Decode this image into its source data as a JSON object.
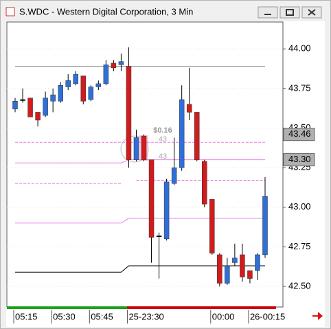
{
  "window_title": "S.WDC - Western Digital Corporation, 3 Min",
  "chart_data": {
    "type": "candlestick",
    "categories": [
      "05:15",
      null,
      null,
      null,
      null,
      "05:30",
      null,
      null,
      null,
      null,
      "05:45",
      null,
      null,
      null,
      null,
      "25-23:30",
      null,
      null,
      null,
      null,
      null,
      null,
      null,
      null,
      null,
      null,
      "00:00",
      null,
      null,
      null,
      null,
      "26-00:15",
      null,
      null
    ],
    "open": [
      43.62,
      43.68,
      43.69,
      43.6,
      43.58,
      43.67,
      43.67,
      43.76,
      43.78,
      43.83,
      43.68,
      43.76,
      43.78,
      43.91,
      43.9,
      43.89,
      43.3,
      43.45,
      43.3,
      42.82,
      42.8,
      43.15,
      43.25,
      43.65,
      43.6,
      43.29,
      43.05,
      42.7,
      42.52,
      42.65,
      42.7,
      42.6,
      42.6,
      42.7
    ],
    "high": [
      43.69,
      43.75,
      43.69,
      43.6,
      43.73,
      43.75,
      43.79,
      43.84,
      43.86,
      43.83,
      43.77,
      43.8,
      43.93,
      43.93,
      43.97,
      44.01,
      43.49,
      43.46,
      43.3,
      42.84,
      43.18,
      43.44,
      43.77,
      43.88,
      43.6,
      43.3,
      43.05,
      42.71,
      42.68,
      42.77,
      42.77,
      42.6,
      42.71,
      43.19
    ],
    "low": [
      43.6,
      43.66,
      43.57,
      43.51,
      43.57,
      43.6,
      43.66,
      43.74,
      43.77,
      43.65,
      43.67,
      43.74,
      43.77,
      43.86,
      43.86,
      43.25,
      43.29,
      43.29,
      42.65,
      42.55,
      42.79,
      43.14,
      43.23,
      43.55,
      43.29,
      43.0,
      42.7,
      42.5,
      42.51,
      42.63,
      42.53,
      42.52,
      42.54,
      42.68
    ],
    "close": [
      43.67,
      43.68,
      43.57,
      43.55,
      43.69,
      43.71,
      43.77,
      43.8,
      43.84,
      43.67,
      43.76,
      43.78,
      43.9,
      43.88,
      43.92,
      43.3,
      43.44,
      43.3,
      42.81,
      42.82,
      43.16,
      43.25,
      43.68,
      43.6,
      43.3,
      43.02,
      42.71,
      42.52,
      42.63,
      42.68,
      42.56,
      42.55,
      42.7,
      43.07
    ],
    "up_color": "#2e6fd8",
    "down_color": "#d01c1c",
    "doji_color": "#000000",
    "ylim": [
      42.37,
      44.17
    ],
    "yticks": [
      {
        "value": 42.5,
        "label": "42.50"
      },
      42.75,
      {
        "value": 43,
        "label": "43.00"
      },
      43.25,
      {
        "value": 43.5,
        "label": "43.50"
      },
      43.75,
      {
        "value": 44,
        "label": "44.00"
      }
    ],
    "grid": true,
    "lines": [
      {
        "color": "#999999",
        "dash": false,
        "values": [
          43.89,
          43.89,
          43.89,
          43.89,
          43.89,
          43.89,
          43.89,
          43.89,
          43.89,
          43.89,
          43.89,
          43.89,
          43.89,
          43.89,
          43.89,
          43.89,
          43.89,
          43.89,
          43.89,
          43.89,
          43.89,
          43.89,
          43.89,
          43.89,
          43.89,
          43.89,
          43.89,
          43.89,
          43.89,
          43.89,
          43.89,
          43.89,
          43.89,
          43.89
        ]
      },
      {
        "color": "#e87ee0",
        "dash": true,
        "values": [
          43.41,
          43.41,
          43.41,
          43.41,
          43.41,
          43.41,
          43.41,
          43.41,
          43.41,
          43.41,
          43.41,
          43.41,
          43.41,
          43.41,
          43.41,
          43.41,
          43.41,
          43.41,
          43.41,
          43.41,
          43.41,
          43.41,
          43.41,
          43.41,
          43.41,
          43.41,
          43.41,
          43.41,
          43.41,
          43.41,
          43.41,
          43.41,
          43.41,
          43.41
        ]
      },
      {
        "color": "#e87ee0",
        "dash": false,
        "values": [
          43.28,
          43.28,
          43.28,
          43.28,
          43.28,
          43.28,
          43.28,
          43.28,
          43.28,
          43.28,
          43.28,
          43.28,
          43.28,
          43.28,
          43.28,
          43.3,
          43.3,
          43.3,
          43.3,
          43.3,
          43.3,
          43.3,
          43.3,
          43.3,
          43.3,
          43.3,
          43.3,
          43.3,
          43.3,
          43.3,
          43.3,
          43.3,
          43.3,
          43.3
        ]
      },
      {
        "color": "#e87ee0",
        "dash": true,
        "values": [
          43.15,
          43.15,
          43.15,
          43.15,
          43.15,
          43.15,
          43.15,
          43.15,
          43.15,
          43.15,
          43.15,
          43.15,
          43.15,
          43.15,
          43.15,
          null,
          43.17,
          43.17,
          43.17,
          43.17,
          43.17,
          43.17,
          43.17,
          43.17,
          43.17,
          43.17,
          43.17,
          43.17,
          43.17,
          43.17,
          43.17,
          43.17,
          43.17,
          43.17
        ]
      },
      {
        "color": "#e87ee0",
        "dash": false,
        "values": [
          42.9,
          42.9,
          42.9,
          42.9,
          42.9,
          42.9,
          42.9,
          42.9,
          42.9,
          42.9,
          42.9,
          42.9,
          42.9,
          42.9,
          42.9,
          42.93,
          42.93,
          42.93,
          42.93,
          42.93,
          42.93,
          42.93,
          42.93,
          42.93,
          42.93,
          42.93,
          42.93,
          42.93,
          42.93,
          42.93,
          42.93,
          42.93,
          42.93,
          42.93
        ]
      },
      {
        "color": "#000000",
        "dash": false,
        "values": [
          42.59,
          42.59,
          42.59,
          42.59,
          42.59,
          42.59,
          42.59,
          42.59,
          42.59,
          42.59,
          42.59,
          42.59,
          42.59,
          42.59,
          42.59,
          42.63,
          42.63,
          42.63,
          42.63,
          42.63,
          42.63,
          42.63,
          42.63,
          42.63,
          42.63,
          42.63,
          42.63,
          42.63,
          42.63,
          42.63,
          42.63,
          42.63,
          42.63,
          42.63
        ]
      }
    ],
    "price_tags": [
      43.46,
      {
        "value": 43.3,
        "label": "43.30"
      }
    ],
    "annotations": [
      "$0.16",
      "43",
      "43"
    ]
  }
}
